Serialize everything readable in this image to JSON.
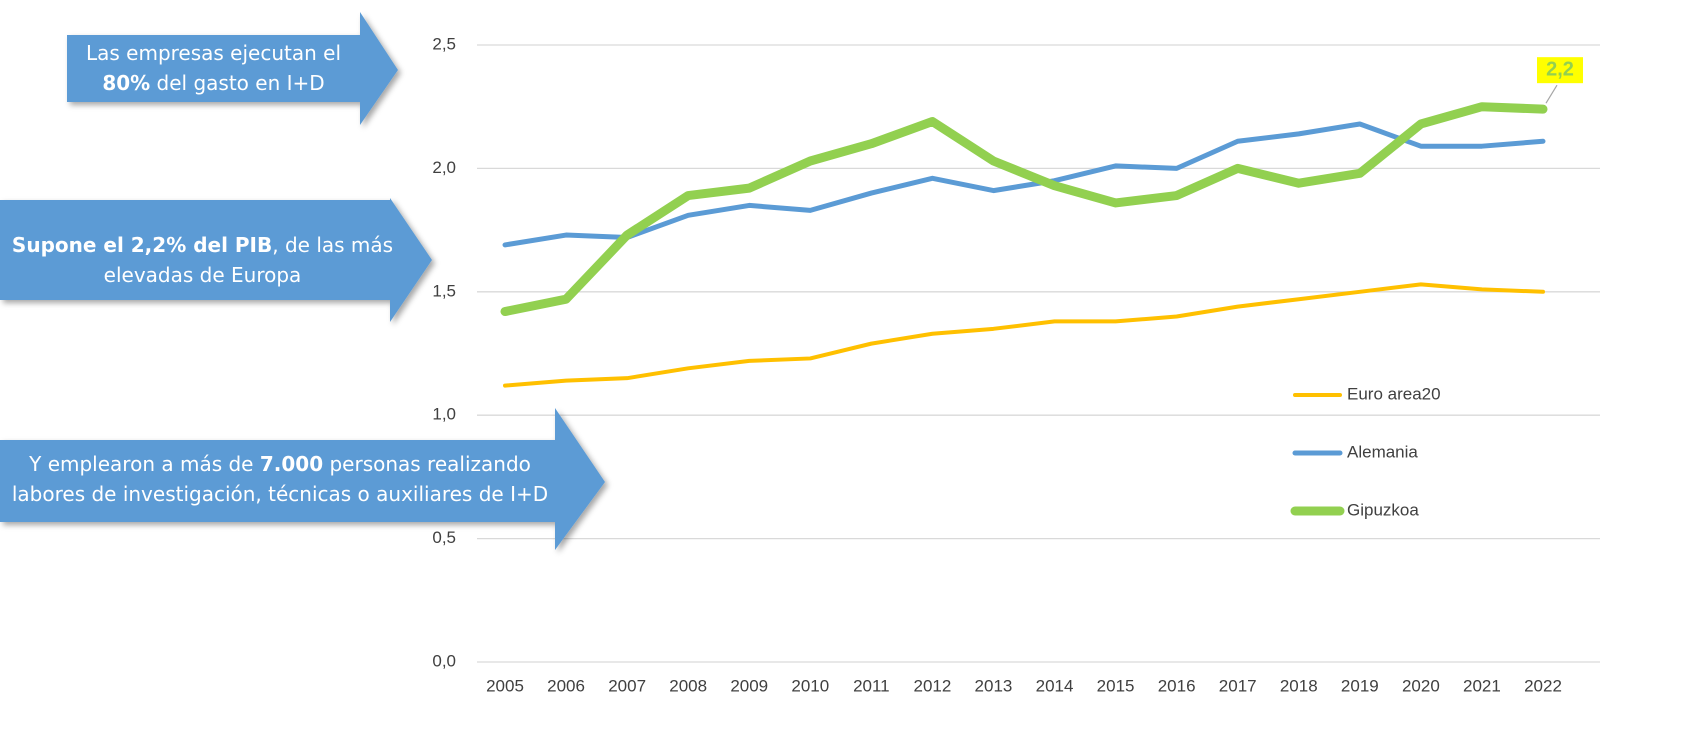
{
  "chart_data": {
    "type": "line",
    "categories": [
      "2005",
      "2006",
      "2007",
      "2008",
      "2009",
      "2010",
      "2011",
      "2012",
      "2013",
      "2014",
      "2015",
      "2016",
      "2017",
      "2018",
      "2019",
      "2020",
      "2021",
      "2022"
    ],
    "series": [
      {
        "name": "Euro area20",
        "color": "#ffc000",
        "values": [
          1.12,
          1.14,
          1.15,
          1.19,
          1.22,
          1.23,
          1.29,
          1.33,
          1.35,
          1.38,
          1.38,
          1.4,
          1.44,
          1.47,
          1.5,
          1.53,
          1.51,
          1.5
        ]
      },
      {
        "name": "Alemania",
        "color": "#5b9bd5",
        "values": [
          1.69,
          1.73,
          1.72,
          1.81,
          1.85,
          1.83,
          1.9,
          1.96,
          1.91,
          1.95,
          2.01,
          2.0,
          2.11,
          2.14,
          2.18,
          2.09,
          2.09,
          2.11
        ]
      },
      {
        "name": "Gipuzkoa",
        "color": "#92d050",
        "values": [
          1.42,
          1.47,
          1.73,
          1.89,
          1.92,
          2.03,
          2.1,
          2.19,
          2.03,
          1.93,
          1.86,
          1.89,
          2.0,
          1.94,
          1.98,
          2.18,
          2.25,
          2.24
        ],
        "value_labels": [
          null,
          null,
          null,
          null,
          null,
          null,
          null,
          null,
          null,
          null,
          null,
          null,
          null,
          null,
          null,
          null,
          null,
          "2,2"
        ]
      }
    ],
    "ylim": [
      0,
      2.5
    ],
    "yticks": [
      {
        "value": 0,
        "label": "0,0"
      },
      {
        "value": 0.5,
        "label": "0,5"
      },
      {
        "value": 1,
        "label": "1,0"
      },
      {
        "value": 1.5,
        "label": "1,5"
      },
      {
        "value": 2,
        "label": "2,0"
      },
      {
        "value": 2.5,
        "label": "2,5"
      }
    ],
    "grid": true,
    "legend": "right"
  },
  "callouts": [
    {
      "pre": "Las empresas ejecutan el ",
      "bold": "80%",
      "post": " del gasto en I+D"
    },
    {
      "bold": "Supone el 2,2% del PIB",
      "post": ", de las más elevadas de Europa"
    },
    {
      "pre": "Y emplearon a más de ",
      "bold": "7.000",
      "post": " personas realizando labores de investigación, técnicas o auxiliares de I+D"
    }
  ]
}
